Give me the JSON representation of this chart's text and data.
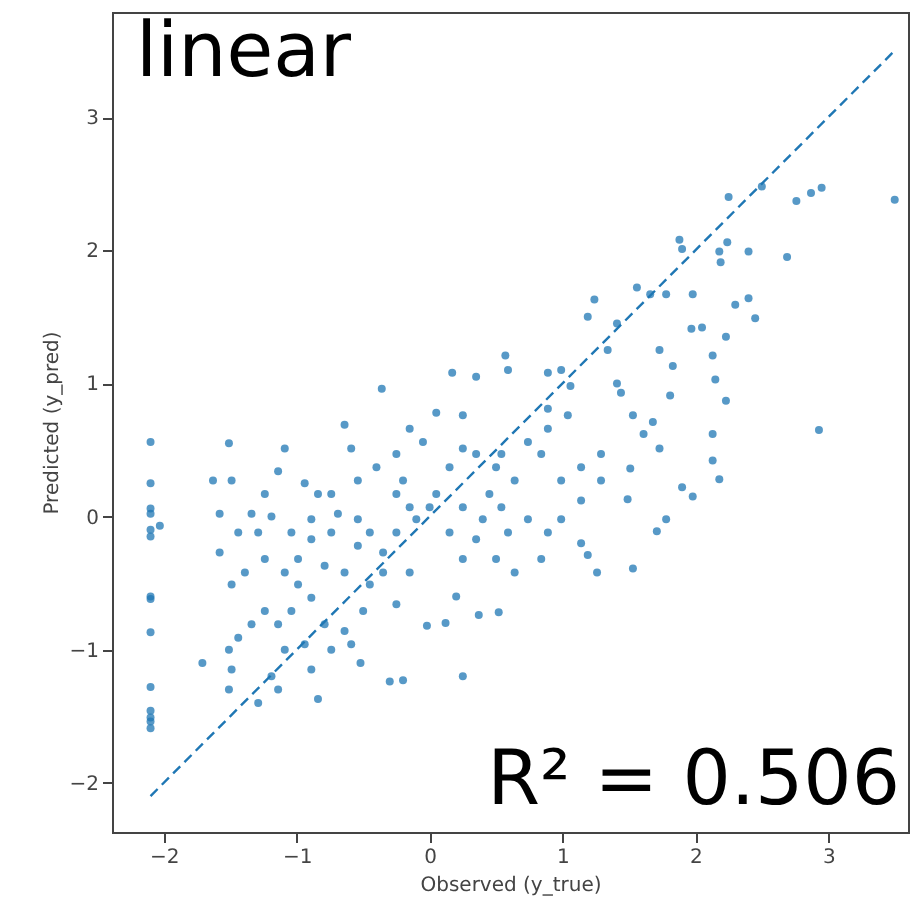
{
  "chart_data": {
    "type": "scatter",
    "title": "linear",
    "xlabel": "Observed (y_true)",
    "ylabel": "Predicted (y_pred)",
    "annotations": [
      "R² = 0.506"
    ],
    "xlim": [
      -2.39,
      3.6
    ],
    "ylim": [
      -2.37,
      3.79
    ],
    "xticks": [
      -2,
      -1,
      0,
      1,
      2,
      3
    ],
    "yticks": [
      -2,
      -1,
      0,
      1,
      2,
      3
    ],
    "series": [
      {
        "color": "#1f77b4",
        "marker": "circle",
        "x": [
          -2.1,
          -2.1,
          -2.1,
          -2.1,
          -2.1,
          -2.1,
          -2.1,
          -2.1,
          -2.1,
          -2.1,
          -2.1,
          -2.1,
          -2.1,
          -2.1,
          -2.03,
          3.5,
          2.95,
          2.87,
          2.76,
          2.69,
          2.93,
          2.5,
          2.25,
          2.4,
          2.24,
          2.18,
          2.19,
          1.88,
          1.9,
          2.4,
          2.45,
          2.3,
          2.23,
          2.23,
          2.15,
          2.13,
          2.05,
          1.97,
          2.13,
          2.13,
          2.18,
          1.98,
          1.9,
          1.78,
          1.71,
          1.73,
          1.68,
          1.53,
          1.61,
          1.51,
          1.49,
          1.53,
          1.26,
          1.19,
          1.14,
          1.56,
          1.24,
          1.19,
          1.41,
          1.34,
          1.66,
          1.78,
          1.98,
          1.73,
          1.83,
          1.81,
          1.41,
          1.44,
          1.06,
          0.89,
          0.57,
          0.59,
          0.17,
          0.35,
          -0.36,
          0.99,
          0.25,
          0.05,
          -0.15,
          -0.64,
          -0.59,
          -0.25,
          -0.05,
          0.25,
          0.5,
          0.64,
          0.84,
          0.99,
          1.14,
          1.29,
          0.45,
          0.74,
          0.89,
          0.54,
          0.25,
          0.05,
          -0.2,
          -0.4,
          -0.54,
          -0.74,
          -0.94,
          -1.14,
          -1.24,
          -1.34,
          -1.49,
          -1.63,
          -1.51,
          -1.09,
          -0.89,
          -0.89,
          -1.04,
          -0.74,
          -0.54,
          -0.45,
          -0.35,
          -0.25,
          -0.1,
          0.0,
          0.15,
          0.25,
          0.35,
          0.5,
          0.64,
          -0.15,
          -0.35,
          -0.45,
          -0.64,
          -0.79,
          -0.99,
          -1.09,
          -1.24,
          -1.39,
          -1.49,
          -1.58,
          -1.44,
          -0.99,
          -0.89,
          -1.04,
          -1.14,
          -1.24,
          -1.34,
          -1.44,
          -1.51,
          -1.49,
          -1.51,
          -1.29,
          -1.14,
          -0.84,
          -0.89,
          -0.74,
          -0.59,
          -0.52,
          -0.64,
          -0.79,
          -0.94,
          -1.09,
          -1.19,
          -1.71,
          -0.3,
          -0.2,
          0.25,
          -0.02,
          0.12,
          0.37,
          0.52,
          0.2,
          -0.25,
          -0.5,
          -0.15,
          -0.25,
          0.15,
          0.35,
          0.54,
          0.74,
          0.89,
          1.04,
          0.89,
          1.14,
          1.29,
          0.99,
          0.84,
          0.59,
          0.4,
          -0.54,
          -0.69,
          -0.84,
          -1.19,
          -1.29,
          -1.58
        ],
        "values": [
          0.56,
          0.25,
          0.06,
          0.02,
          -0.1,
          -0.15,
          -0.6,
          -0.62,
          -0.87,
          -1.28,
          -1.46,
          -1.51,
          -1.54,
          -1.59,
          -0.07,
          2.38,
          2.47,
          2.43,
          2.37,
          1.95,
          0.65,
          2.48,
          2.4,
          1.99,
          2.06,
          1.99,
          1.91,
          2.08,
          2.01,
          1.64,
          1.49,
          1.59,
          1.35,
          0.87,
          1.03,
          1.21,
          1.42,
          1.41,
          0.62,
          0.42,
          0.28,
          0.15,
          0.22,
          -0.02,
          -0.11,
          0.51,
          0.71,
          0.76,
          0.62,
          0.36,
          0.13,
          -0.39,
          -0.42,
          -0.29,
          -0.2,
          1.72,
          1.63,
          1.5,
          1.45,
          1.25,
          1.67,
          1.67,
          1.67,
          1.25,
          1.13,
          0.91,
          1.0,
          0.93,
          0.98,
          1.08,
          1.21,
          1.1,
          1.08,
          1.05,
          0.96,
          1.1,
          0.76,
          0.78,
          0.66,
          0.69,
          0.51,
          0.47,
          0.56,
          0.51,
          0.37,
          0.27,
          0.47,
          0.27,
          0.37,
          0.47,
          0.17,
          -0.02,
          -0.12,
          0.07,
          0.07,
          0.17,
          0.27,
          0.37,
          0.27,
          0.17,
          0.25,
          0.34,
          0.17,
          0.02,
          0.27,
          0.27,
          0.55,
          0.51,
          -0.02,
          -0.17,
          -0.12,
          -0.12,
          -0.02,
          -0.12,
          -0.27,
          -0.12,
          -0.02,
          0.07,
          -0.12,
          -0.32,
          -0.17,
          -0.32,
          -0.42,
          -0.42,
          -0.42,
          -0.51,
          -0.42,
          -0.37,
          -0.32,
          -0.42,
          -0.32,
          -0.42,
          -0.51,
          -0.27,
          -0.12,
          -0.51,
          -0.61,
          -0.71,
          -0.81,
          -0.71,
          -0.81,
          -0.91,
          -1.0,
          -1.15,
          -1.3,
          -1.4,
          -1.3,
          -1.37,
          -1.15,
          -1.0,
          -0.96,
          -1.1,
          -0.86,
          -0.81,
          -0.96,
          -1.0,
          -1.2,
          -1.1,
          -1.24,
          -1.23,
          -1.2,
          -0.82,
          -0.8,
          -0.74,
          -0.72,
          -0.6,
          -0.66,
          -0.71,
          0.07,
          0.17,
          0.37,
          0.47,
          0.47,
          0.56,
          0.66,
          0.76,
          0.81,
          0.12,
          0.27,
          -0.02,
          -0.32,
          -0.12,
          -0.02,
          -0.22,
          0.02,
          0.17,
          0.0,
          -0.12,
          0.02
        ]
      },
      {
        "type": "line",
        "color": "#1f77b4",
        "line_style": "dashed",
        "x": [
          -2.1,
          3.5
        ],
        "values": [
          -2.1,
          3.5
        ]
      }
    ]
  }
}
